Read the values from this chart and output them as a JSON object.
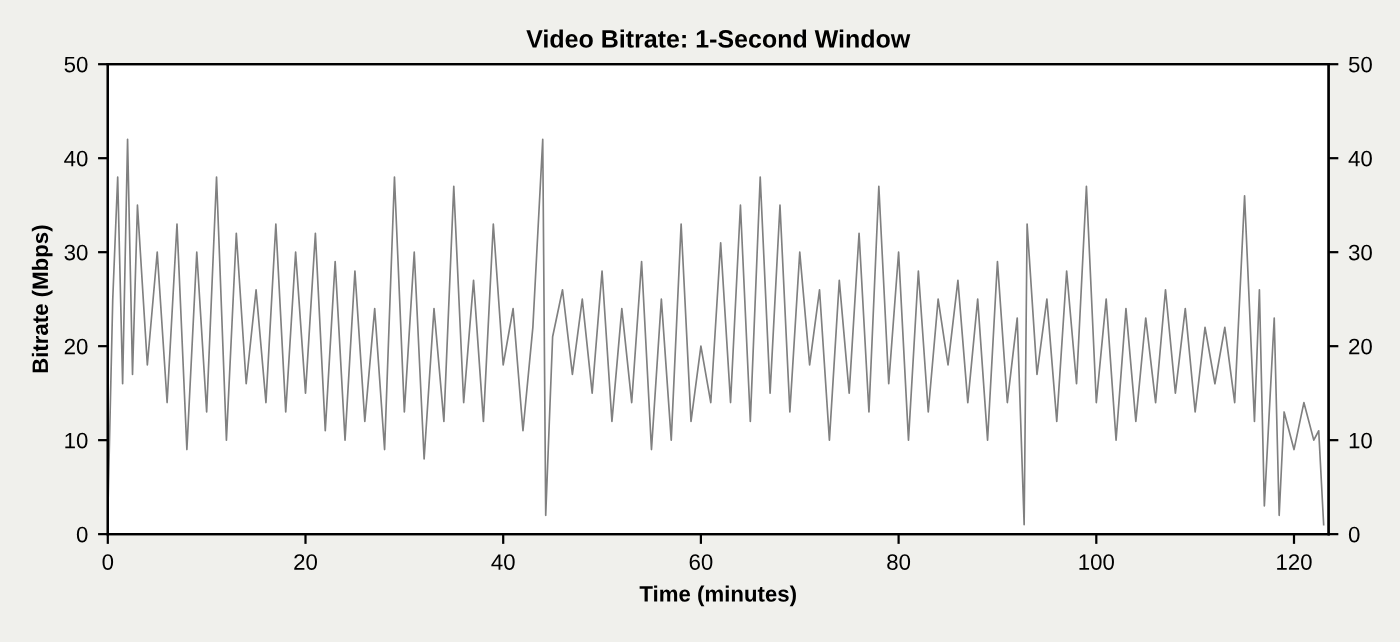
{
  "chart_data": {
    "type": "line",
    "title": "Video Bitrate: 1-Second Window",
    "xlabel": "Time (minutes)",
    "ylabel": "Bitrate (Mbps)",
    "xlim": [
      0,
      123.5
    ],
    "xticks": [
      0,
      20,
      40,
      60,
      80,
      100,
      120
    ],
    "ylim": [
      0,
      50
    ],
    "yticks": [
      0,
      10,
      20,
      30,
      40,
      50
    ],
    "y2lim": [
      0,
      50
    ],
    "y2ticks": [
      0,
      10,
      20,
      30,
      40,
      50
    ],
    "grid": false,
    "legend": false,
    "series": [
      {
        "color": "#808080",
        "x": [
          0,
          0.5,
          1,
          1.5,
          2,
          2.5,
          3,
          4,
          5,
          6,
          7,
          8,
          9,
          10,
          11,
          12,
          13,
          14,
          15,
          16,
          17,
          18,
          19,
          20,
          21,
          22,
          23,
          24,
          25,
          26,
          27,
          28,
          29,
          30,
          31,
          32,
          33,
          34,
          35,
          36,
          37,
          38,
          39,
          40,
          41,
          42,
          43,
          44,
          44.3,
          45,
          46,
          47,
          48,
          49,
          50,
          51,
          52,
          53,
          54,
          55,
          56,
          57,
          58,
          59,
          60,
          61,
          62,
          63,
          64,
          65,
          66,
          67,
          68,
          69,
          70,
          71,
          72,
          73,
          74,
          75,
          76,
          77,
          78,
          79,
          80,
          81,
          82,
          83,
          84,
          85,
          86,
          87,
          88,
          89,
          90,
          91,
          92,
          92.7,
          93,
          94,
          95,
          96,
          97,
          98,
          99,
          100,
          101,
          102,
          103,
          104,
          105,
          106,
          107,
          108,
          109,
          110,
          111,
          112,
          113,
          114,
          115,
          116,
          116.5,
          117,
          118,
          118.5,
          119,
          120,
          121,
          122,
          122.5,
          123
        ],
        "values": [
          2,
          25,
          38,
          16,
          42,
          17,
          35,
          18,
          30,
          14,
          33,
          9,
          30,
          13,
          38,
          10,
          32,
          16,
          26,
          14,
          33,
          13,
          30,
          15,
          32,
          11,
          29,
          10,
          28,
          12,
          24,
          9,
          38,
          13,
          30,
          8,
          24,
          12,
          37,
          14,
          27,
          12,
          33,
          18,
          24,
          11,
          22,
          42,
          2,
          21,
          26,
          17,
          25,
          15,
          28,
          12,
          24,
          14,
          29,
          9,
          25,
          10,
          33,
          12,
          20,
          14,
          31,
          14,
          35,
          12,
          38,
          15,
          35,
          13,
          30,
          18,
          26,
          10,
          27,
          15,
          32,
          13,
          37,
          16,
          30,
          10,
          28,
          13,
          25,
          18,
          27,
          14,
          25,
          10,
          29,
          14,
          23,
          1,
          33,
          17,
          25,
          12,
          28,
          16,
          37,
          14,
          25,
          10,
          24,
          12,
          23,
          14,
          26,
          15,
          24,
          13,
          22,
          16,
          22,
          14,
          36,
          12,
          26,
          3,
          23,
          2,
          13,
          9,
          14,
          10,
          11,
          1
        ]
      }
    ]
  }
}
